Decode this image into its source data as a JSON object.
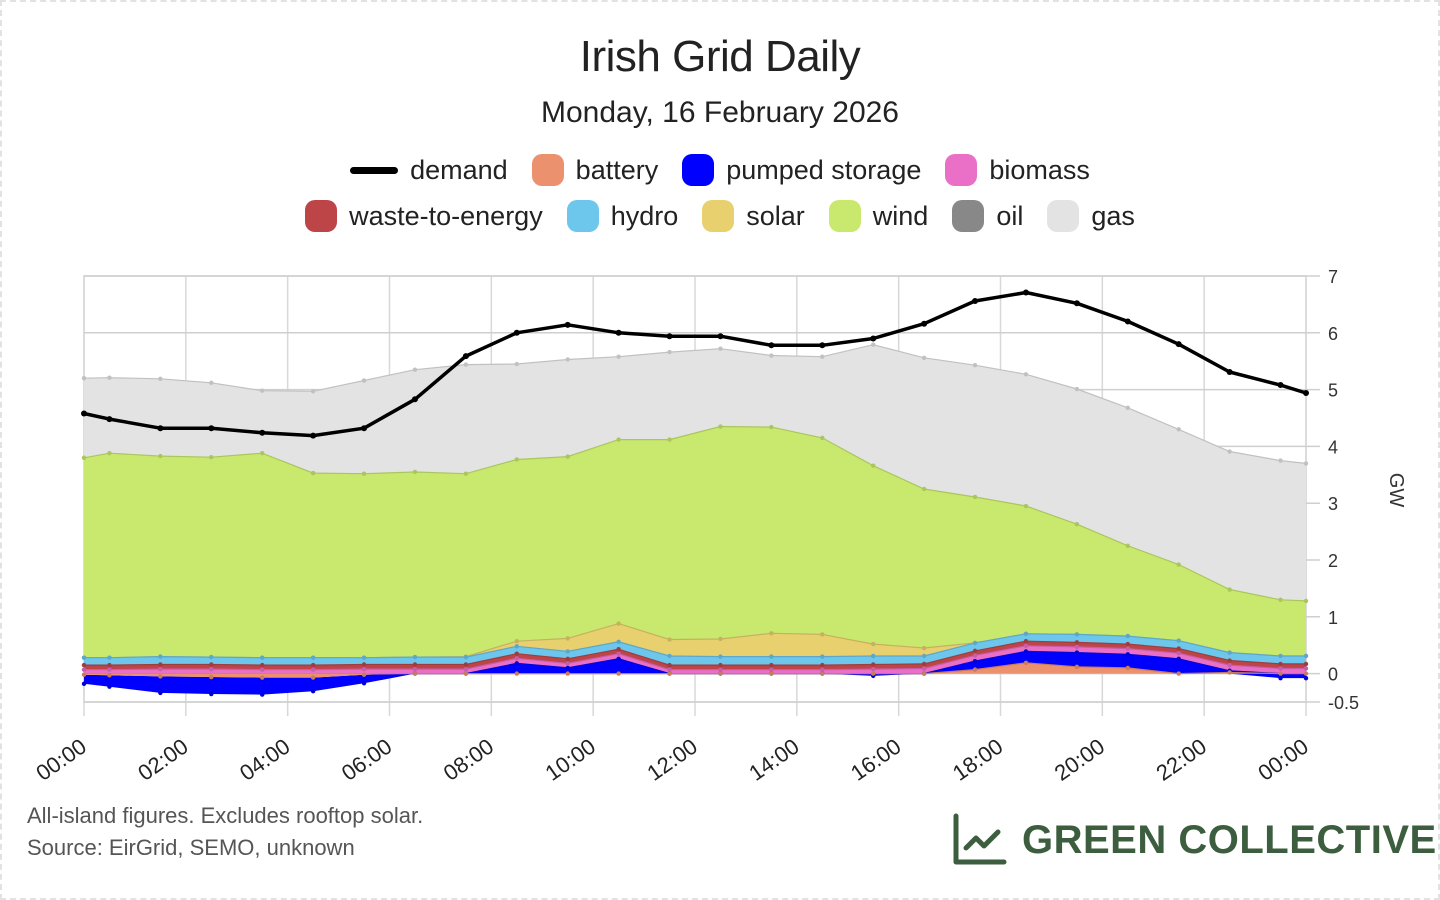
{
  "header": {
    "title": "Irish Grid Daily",
    "subtitle": "Monday, 16 February 2026"
  },
  "legend": {
    "row1": [
      {
        "label": "demand",
        "type": "line",
        "color": "#000000"
      },
      {
        "label": "battery",
        "type": "area",
        "color": "#ec916d"
      },
      {
        "label": "pumped storage",
        "type": "area",
        "color": "#0000ff"
      },
      {
        "label": "biomass",
        "type": "area",
        "color": "#ea6fc7"
      }
    ],
    "row2": [
      {
        "label": "waste-to-energy",
        "type": "area",
        "color": "#bd4547"
      },
      {
        "label": "hydro",
        "type": "area",
        "color": "#6dc6ec"
      },
      {
        "label": "solar",
        "type": "area",
        "color": "#e9d06e"
      },
      {
        "label": "wind",
        "type": "area",
        "color": "#c8e96e"
      },
      {
        "label": "oil",
        "type": "area",
        "color": "#888888"
      },
      {
        "label": "gas",
        "type": "area",
        "color": "#e3e3e3"
      }
    ]
  },
  "footer": {
    "note_line1": "All-island figures. Excludes rooftop solar.",
    "note_line2": "Source: EirGrid, SEMO, unknown",
    "brand": "GREEN COLLECTIVE",
    "brand_color": "#3c5e3e"
  },
  "chart_data": {
    "type": "area",
    "stacked": true,
    "title": "Irish Grid Daily",
    "subtitle": "Monday, 16 February 2026",
    "xlabel": "",
    "ylabel": "GW",
    "y_axis_side": "right",
    "ylim": [
      -0.5,
      7
    ],
    "yticks": [
      -0.5,
      0,
      1,
      2,
      3,
      4,
      5,
      6,
      7
    ],
    "ytick_labels": [
      "-0.5",
      "0",
      "1",
      "2",
      "3",
      "4",
      "5",
      "6",
      "7"
    ],
    "xlim_hours": [
      0,
      24
    ],
    "xticks_hours": [
      0,
      2,
      4,
      6,
      8,
      10,
      12,
      14,
      16,
      18,
      20,
      22,
      24
    ],
    "xtick_labels": [
      "00:00",
      "02:00",
      "04:00",
      "06:00",
      "08:00",
      "10:00",
      "12:00",
      "14:00",
      "16:00",
      "18:00",
      "20:00",
      "22:00",
      "00:00"
    ],
    "grid": true,
    "legend_position": "top",
    "x_hours": [
      0,
      0.5,
      1.5,
      2.5,
      3.5,
      4.5,
      5.5,
      6.5,
      7.5,
      8.5,
      9.5,
      10.5,
      11.5,
      12.5,
      13.5,
      14.5,
      15.5,
      16.5,
      17.5,
      18.5,
      19.5,
      20.5,
      21.5,
      22.5,
      23.5,
      24
    ],
    "demand": {
      "name": "demand",
      "color": "#000000",
      "values": [
        4.58,
        4.48,
        4.32,
        4.32,
        4.24,
        4.19,
        4.32,
        4.83,
        5.59,
        6.0,
        6.14,
        6.0,
        5.94,
        5.94,
        5.78,
        5.78,
        5.9,
        6.16,
        6.56,
        6.71,
        6.52,
        6.2,
        5.8,
        5.31,
        5.08,
        4.94
      ]
    },
    "series": [
      {
        "name": "battery",
        "color": "#ec916d",
        "values": [
          -0.02,
          -0.03,
          -0.05,
          -0.06,
          -0.07,
          -0.07,
          -0.02,
          0.0,
          0.0,
          0.0,
          0.0,
          0.0,
          0.0,
          0.0,
          0.0,
          0.0,
          0.0,
          0.0,
          0.07,
          0.19,
          0.12,
          0.1,
          0.0,
          0.02,
          0.0,
          0.0
        ]
      },
      {
        "name": "pumped storage",
        "color": "#0000ff",
        "values": [
          -0.16,
          -0.2,
          -0.29,
          -0.3,
          -0.3,
          -0.24,
          -0.15,
          0.0,
          0.0,
          0.18,
          0.1,
          0.26,
          0.0,
          0.0,
          0.0,
          0.0,
          -0.04,
          0.0,
          0.15,
          0.2,
          0.25,
          0.24,
          0.26,
          0.03,
          -0.08,
          -0.08
        ]
      },
      {
        "name": "biomass",
        "color": "#ea6fc7",
        "values": [
          0.07,
          0.07,
          0.08,
          0.08,
          0.07,
          0.07,
          0.08,
          0.08,
          0.08,
          0.09,
          0.08,
          0.09,
          0.07,
          0.07,
          0.07,
          0.07,
          0.08,
          0.09,
          0.1,
          0.1,
          0.1,
          0.1,
          0.1,
          0.1,
          0.09,
          0.09
        ]
      },
      {
        "name": "waste-to-energy",
        "color": "#bd4547",
        "values": [
          0.08,
          0.08,
          0.08,
          0.08,
          0.08,
          0.08,
          0.08,
          0.08,
          0.08,
          0.08,
          0.08,
          0.08,
          0.08,
          0.08,
          0.08,
          0.08,
          0.08,
          0.08,
          0.08,
          0.08,
          0.08,
          0.08,
          0.08,
          0.08,
          0.08,
          0.08
        ]
      },
      {
        "name": "hydro",
        "color": "#6dc6ec",
        "values": [
          0.13,
          0.13,
          0.14,
          0.13,
          0.13,
          0.13,
          0.12,
          0.13,
          0.13,
          0.13,
          0.13,
          0.13,
          0.16,
          0.15,
          0.15,
          0.15,
          0.15,
          0.14,
          0.14,
          0.13,
          0.14,
          0.14,
          0.14,
          0.14,
          0.14,
          0.14
        ]
      },
      {
        "name": "solar",
        "color": "#e9d06e",
        "values": [
          0,
          0,
          0,
          0,
          0,
          0,
          0,
          0,
          0.01,
          0.09,
          0.23,
          0.32,
          0.29,
          0.31,
          0.41,
          0.39,
          0.21,
          0.14,
          0,
          0,
          0,
          0,
          0,
          0,
          0,
          0
        ]
      },
      {
        "name": "wind",
        "color": "#c8e96e",
        "values": [
          3.52,
          3.6,
          3.53,
          3.52,
          3.6,
          3.25,
          3.24,
          3.26,
          3.22,
          3.2,
          3.2,
          3.24,
          3.52,
          3.74,
          3.63,
          3.46,
          3.14,
          2.8,
          2.57,
          2.25,
          1.94,
          1.59,
          1.34,
          1.11,
          0.99,
          0.97
        ]
      },
      {
        "name": "oil",
        "color": "#888888",
        "values": [
          0,
          0,
          0,
          0,
          0,
          0,
          0,
          0,
          0,
          0,
          0,
          0,
          0,
          0,
          0,
          0,
          0,
          0,
          0,
          0,
          0,
          0,
          0,
          0,
          0,
          0
        ]
      },
      {
        "name": "gas",
        "color": "#e3e3e3",
        "values": [
          1.4,
          1.33,
          1.36,
          1.31,
          1.1,
          1.44,
          1.64,
          1.8,
          1.92,
          1.68,
          1.71,
          1.46,
          1.54,
          1.37,
          1.26,
          1.43,
          2.13,
          2.31,
          2.32,
          2.32,
          2.38,
          2.43,
          2.38,
          2.43,
          2.45,
          2.42
        ]
      }
    ]
  }
}
